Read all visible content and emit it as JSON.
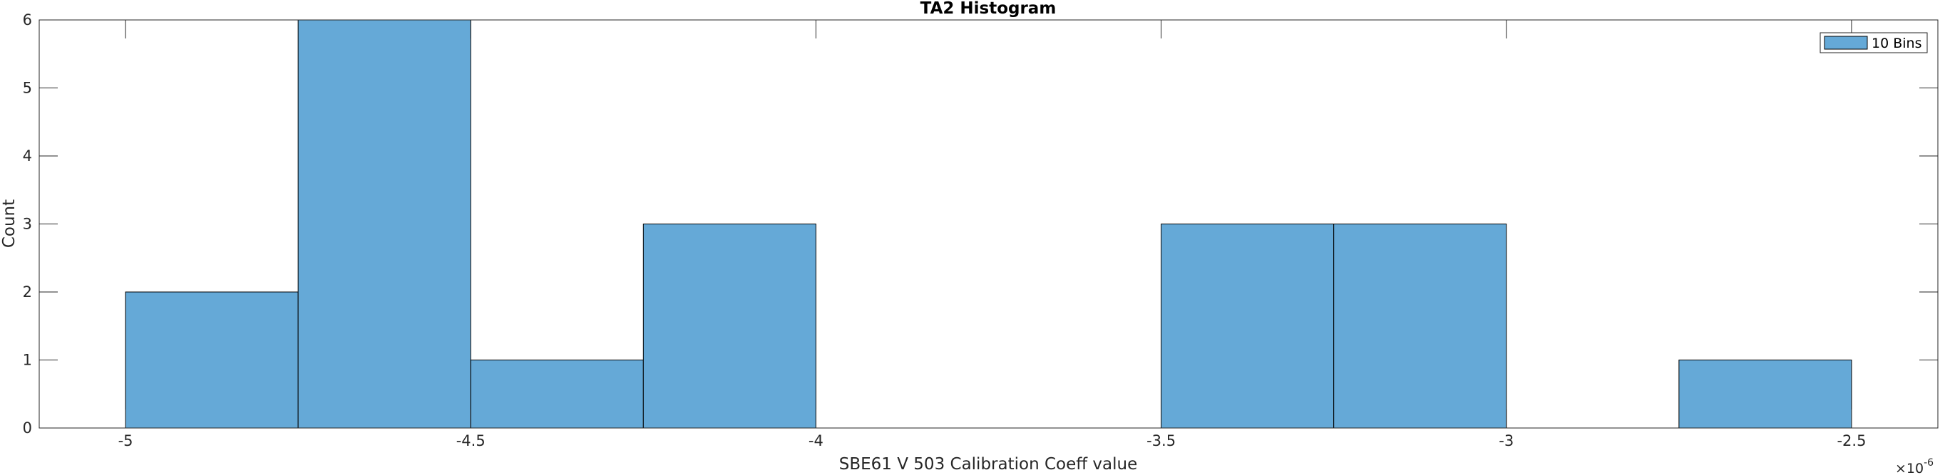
{
  "chart_data": {
    "type": "bar",
    "title": "TA2 Histogram",
    "xlabel": "SBE61 V 503 Calibration Coeff value",
    "ylabel": "Count",
    "x_exponent_label": "×10",
    "x_exponent_power": "-6",
    "xlim": [
      -5.125e-06,
      -2.375e-06
    ],
    "ylim": [
      0,
      6
    ],
    "x_ticks": [
      -5e-06,
      -4.5e-06,
      -4e-06,
      -3.5e-06,
      -3e-06,
      -2.5e-06
    ],
    "x_tick_labels": [
      "-5",
      "-4.5",
      "-4",
      "-3.5",
      "-3",
      "-2.5"
    ],
    "y_ticks": [
      0,
      1,
      2,
      3,
      4,
      5,
      6
    ],
    "y_tick_labels": [
      "0",
      "1",
      "2",
      "3",
      "4",
      "5",
      "6"
    ],
    "bin_edges": [
      -5e-06,
      -4.75e-06,
      -4.5e-06,
      -4.25e-06,
      -4e-06,
      -3.75e-06,
      -3.5e-06,
      -3.25e-06,
      -3e-06,
      -2.75e-06,
      -2.5e-06
    ],
    "series": [
      {
        "name": "10 Bins",
        "values": [
          2,
          6,
          1,
          3,
          0,
          0,
          3,
          3,
          0,
          1
        ]
      }
    ],
    "legend": "top-right",
    "grid": false,
    "colors": {
      "bar_fill": "#65A9D7",
      "bar_edge": "#000000",
      "axis": "#262626"
    }
  }
}
